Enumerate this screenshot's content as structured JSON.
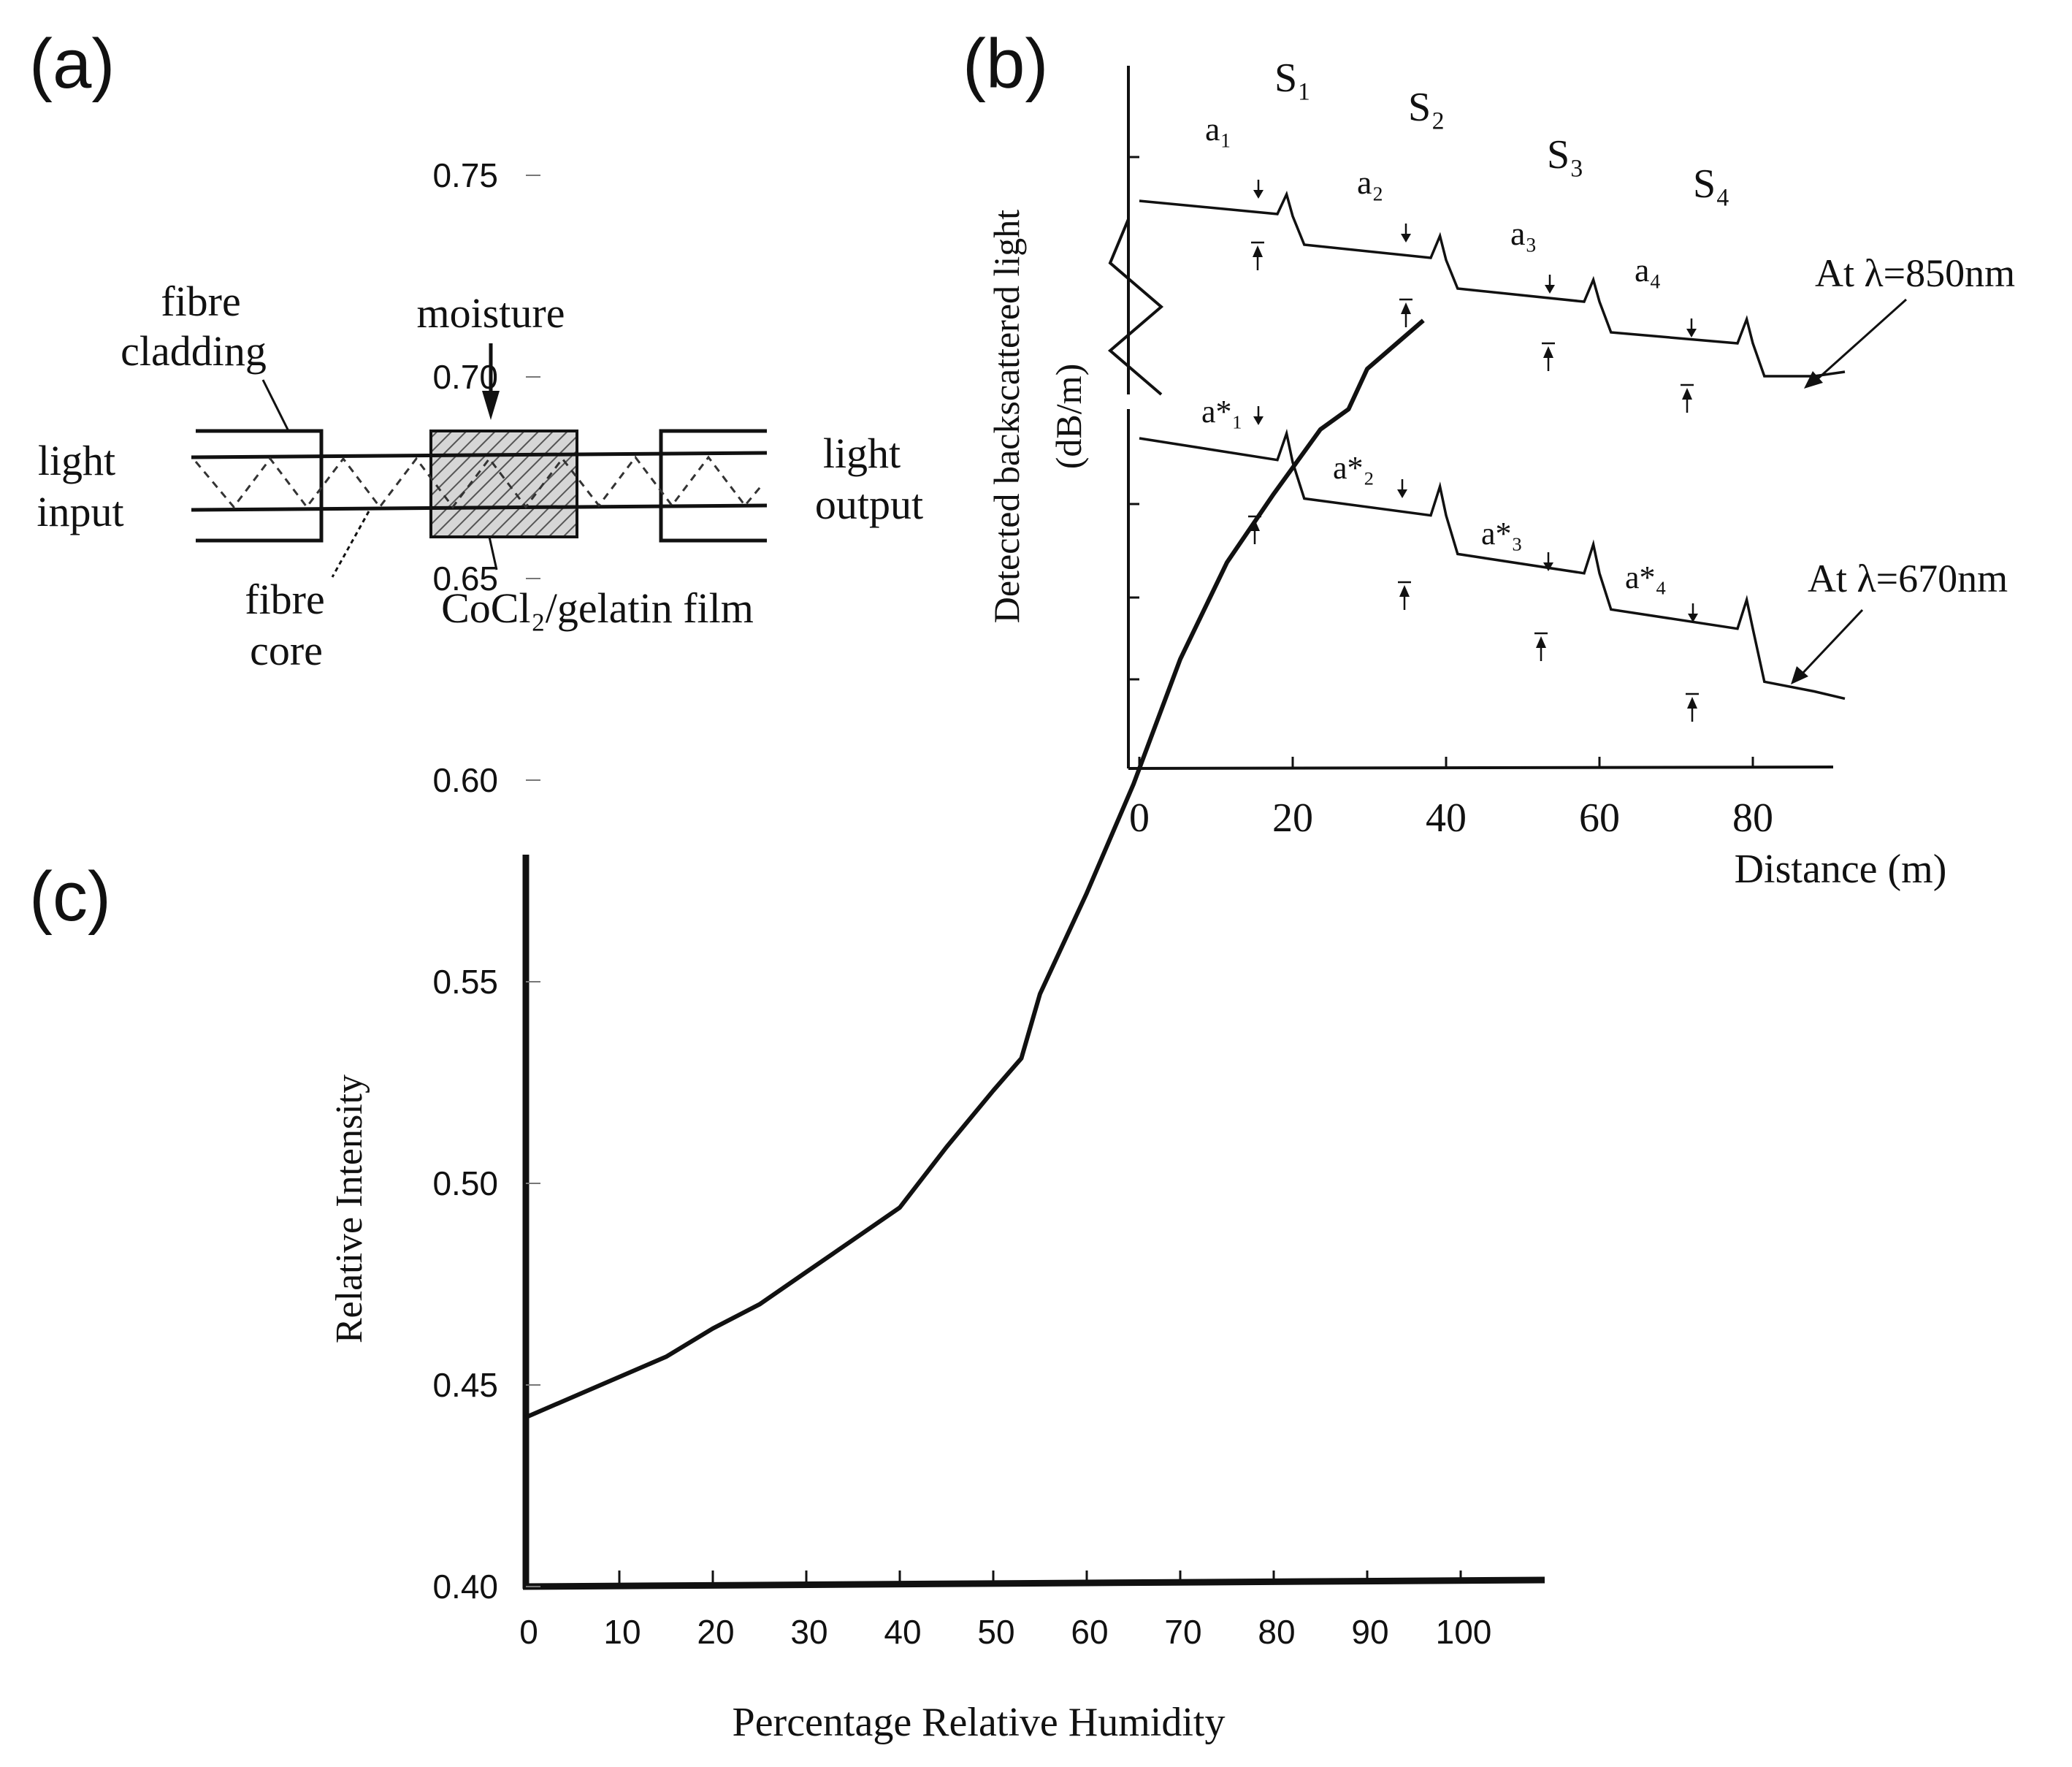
{
  "panel_a": {
    "label": "(a)",
    "fibre_cladding": [
      "fibre",
      "cladding"
    ],
    "moisture": "moisture",
    "light_input": [
      "light",
      "input"
    ],
    "light_output": [
      "light",
      "output"
    ],
    "fibre_core": [
      "fibre",
      "core"
    ],
    "film": "CoCl₂/gelatin film"
  },
  "panel_b": {
    "label": "(b)",
    "ylabel_line1": "Detected backscattered light",
    "ylabel_line2": "(dB/m)",
    "xlabel": "Distance (m)",
    "sensor_labels": [
      "S₁",
      "S₂",
      "S₃",
      "S₄"
    ],
    "segment_labels_850": [
      "a₁",
      "a₂",
      "a₃",
      "a₄"
    ],
    "segment_labels_670": [
      "a*₁",
      "a*₂",
      "a*₃",
      "a*₄"
    ],
    "annotation_850": "At λ=850nm",
    "annotation_670": "At λ=670nm"
  },
  "panel_c": {
    "label": "(c)"
  },
  "chart_data": [
    {
      "type": "line",
      "panel": "b",
      "title": "",
      "xlabel": "Distance (m)",
      "ylabel": "Detected backscattered light (dB/m)",
      "xlim": [
        0,
        95
      ],
      "xticks": [
        0,
        20,
        40,
        60,
        80
      ],
      "series": [
        {
          "name": "At λ=850nm",
          "x": [
            0,
            18,
            19.2,
            20,
            21.5,
            38,
            39.2,
            40,
            41.5,
            58,
            59.2,
            60,
            61.5,
            78,
            79.2,
            80,
            81.5,
            88,
            92
          ],
          "y": [
            -0.6,
            -1.2,
            -0.3,
            -1.3,
            -2.6,
            -3.2,
            -2.2,
            -3.3,
            -4.6,
            -5.2,
            -4.2,
            -5.2,
            -6.6,
            -7.1,
            -6.0,
            -7.1,
            -8.6,
            -8.6,
            -8.4
          ]
        },
        {
          "name": "At λ=670nm",
          "x": [
            0,
            18,
            19.2,
            20,
            21.5,
            38,
            39.2,
            40,
            41.5,
            58,
            59.2,
            60,
            61.5,
            78,
            79.2,
            80,
            81.5,
            88,
            92
          ],
          "y": [
            0,
            -0.9,
            0.2,
            -1.0,
            -2.5,
            -3.2,
            -2.0,
            -3.2,
            -4.8,
            -5.6,
            -4.4,
            -5.6,
            -7.1,
            -7.9,
            -6.7,
            -7.9,
            -10.1,
            -10.5,
            -10.8
          ]
        }
      ]
    },
    {
      "type": "line",
      "panel": "c",
      "title": "",
      "xlabel": "Percentage Relative Humidity",
      "ylabel": "Relative Intensity",
      "xlim": [
        0,
        110
      ],
      "ylim": [
        0.4,
        0.76
      ],
      "xticks": [
        0,
        10,
        20,
        30,
        40,
        50,
        60,
        70,
        80,
        90,
        100
      ],
      "yticks": [
        "0.40",
        "0.45",
        "0.50",
        "0.55",
        "0.60",
        "0.65",
        "0.70",
        "0.75"
      ],
      "series": [
        {
          "name": "Relative Intensity",
          "x": [
            0,
            5,
            10,
            15,
            20,
            25,
            30,
            35,
            40,
            45,
            50,
            53,
            55,
            60,
            65,
            70,
            75,
            80,
            85,
            88,
            90,
            93,
            96
          ],
          "y": [
            0.442,
            0.447,
            0.452,
            0.457,
            0.464,
            0.47,
            0.478,
            0.486,
            0.494,
            0.509,
            0.523,
            0.531,
            0.547,
            0.572,
            0.599,
            0.63,
            0.654,
            0.671,
            0.687,
            0.692,
            0.702,
            0.708,
            0.714
          ]
        }
      ]
    }
  ]
}
